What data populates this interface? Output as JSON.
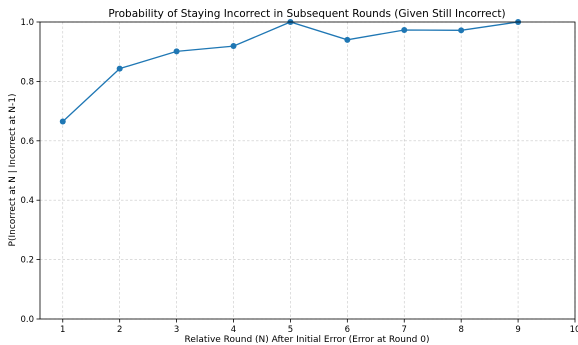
{
  "chart_data": {
    "type": "line",
    "title": "Probability of Staying Incorrect in Subsequent Rounds (Given Still Incorrect)",
    "xlabel": "Relative Round (N) After Initial Error (Error at Round 0)",
    "ylabel": "P(Incorrect at N | Incorrect at N-1)",
    "xlim": [
      0.6,
      10
    ],
    "ylim": [
      0.0,
      1.0
    ],
    "xticks": [
      1,
      2,
      3,
      4,
      5,
      6,
      7,
      8,
      9,
      10
    ],
    "yticks": [
      0.0,
      0.2,
      0.4,
      0.6,
      0.8,
      1.0
    ],
    "ytick_labels": [
      "0.0",
      "0.2",
      "0.4",
      "0.6",
      "0.8",
      "1.0"
    ],
    "grid": true,
    "series": [
      {
        "color": "#1f77b4",
        "x": [
          1,
          2,
          3,
          4,
          5,
          6,
          7,
          8,
          9
        ],
        "y": [
          0.665,
          0.843,
          0.901,
          0.919,
          1.0,
          0.94,
          0.973,
          0.972,
          1.0
        ]
      }
    ]
  }
}
